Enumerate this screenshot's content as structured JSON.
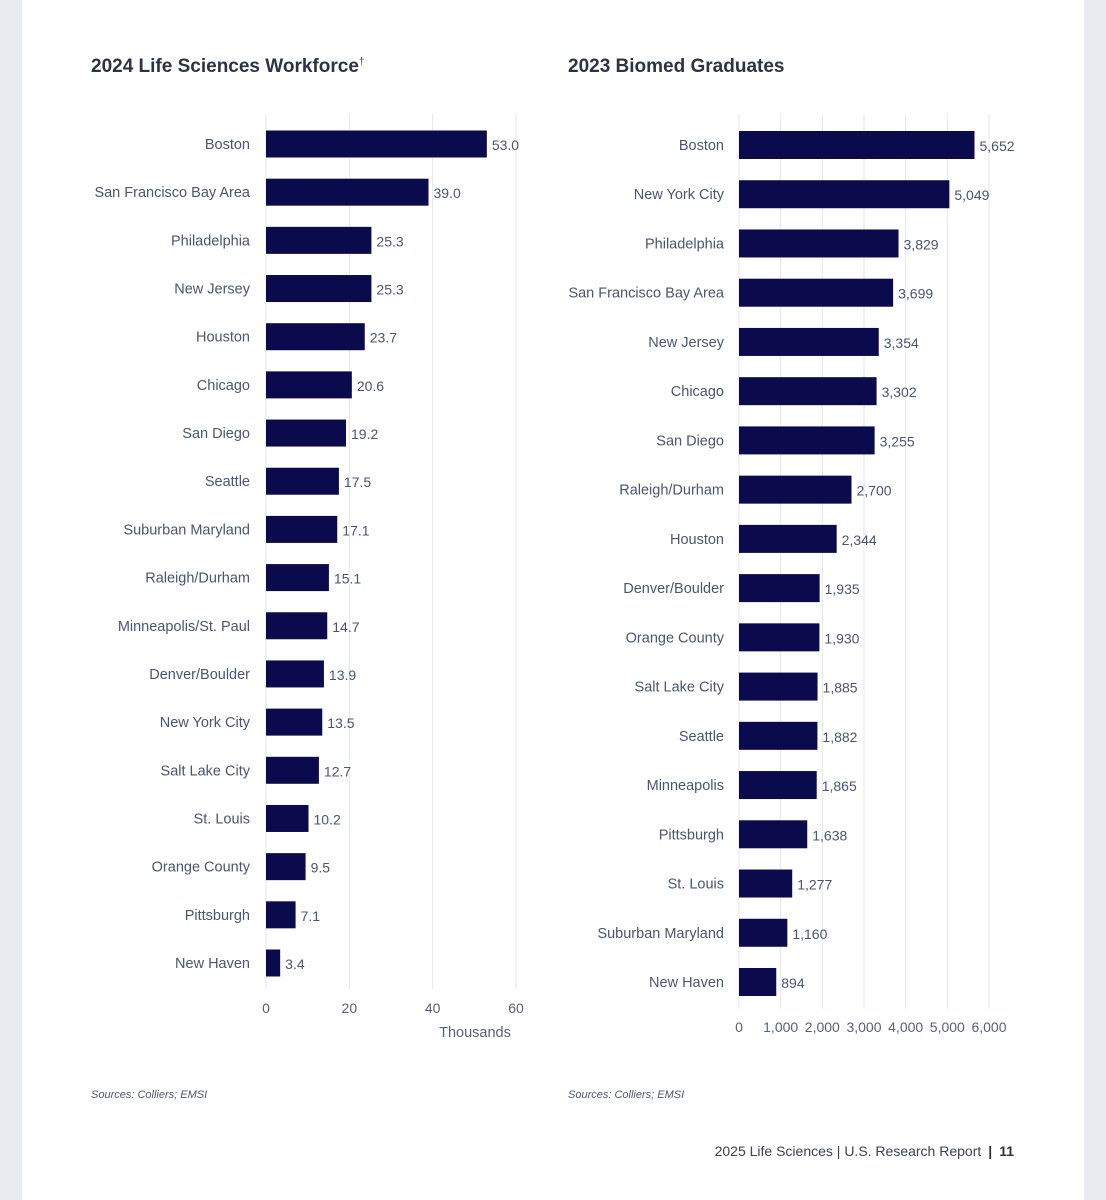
{
  "colors": {
    "bar": "#0a0a4d",
    "grid": "#e4e6ec",
    "axis_text": "#56607a",
    "category_text": "#4a5573",
    "value_text": "#4a5573"
  },
  "chart_data": [
    {
      "type": "bar",
      "orientation": "horizontal",
      "title": "2024 Life Sciences Workforce",
      "title_mark": "†",
      "categories": [
        "Boston",
        "San Francisco Bay Area",
        "Philadelphia",
        "New Jersey",
        "Houston",
        "Chicago",
        "San Diego",
        "Seattle",
        "Suburban Maryland",
        "Raleigh/Durham",
        "Minneapolis/St. Paul",
        "Denver/Boulder",
        "New York City",
        "Salt Lake City",
        "St. Louis",
        "Orange County",
        "Pittsburgh",
        "New Haven"
      ],
      "values": [
        53.0,
        39.0,
        25.3,
        25.3,
        23.7,
        20.6,
        19.2,
        17.5,
        17.1,
        15.1,
        14.7,
        13.9,
        13.5,
        12.7,
        10.2,
        9.5,
        7.1,
        3.4
      ],
      "value_labels": [
        "53.0",
        "39.0",
        "25.3",
        "25.3",
        "23.7",
        "20.6",
        "19.2",
        "17.5",
        "17.1",
        "15.1",
        "14.7",
        "13.9",
        "13.5",
        "12.7",
        "10.2",
        "9.5",
        "7.1",
        "3.4"
      ],
      "xlim": [
        0,
        60
      ],
      "xticks": [
        0,
        20,
        40,
        60
      ],
      "xtick_labels": [
        "0",
        "20",
        "40",
        "60"
      ],
      "xlabel": "Thousands",
      "ylabel": "",
      "grid": true,
      "source": "Sources: Colliers; EMSI"
    },
    {
      "type": "bar",
      "orientation": "horizontal",
      "title": "2023 Biomed Graduates",
      "categories": [
        "Boston",
        "New York City",
        "Philadelphia",
        "San Francisco Bay Area",
        "New Jersey",
        "Chicago",
        "San Diego",
        "Raleigh/Durham",
        "Houston",
        "Denver/Boulder",
        "Orange County",
        "Salt Lake City",
        "Seattle",
        "Minneapolis",
        "Pittsburgh",
        "St. Louis",
        "Suburban Maryland",
        "New Haven"
      ],
      "values": [
        5652,
        5049,
        3829,
        3699,
        3354,
        3302,
        3255,
        2700,
        2344,
        1935,
        1930,
        1885,
        1882,
        1865,
        1638,
        1277,
        1160,
        894
      ],
      "value_labels": [
        "5,652",
        "5,049",
        "3,829",
        "3,699",
        "3,354",
        "3,302",
        "3,255",
        "2,700",
        "2,344",
        "1,935",
        "1,930",
        "1,885",
        "1,882",
        "1,865",
        "1,638",
        "1,277",
        "1,160",
        "894"
      ],
      "xlim": [
        0,
        6000
      ],
      "xticks": [
        0,
        1000,
        2000,
        3000,
        4000,
        5000,
        6000
      ],
      "xtick_labels": [
        "0",
        "1,000",
        "2,000",
        "3,000",
        "4,000",
        "5,000",
        "6,000"
      ],
      "xlabel": "",
      "ylabel": "",
      "grid": true,
      "source": "Sources: Colliers; EMSI"
    }
  ],
  "footer": {
    "report": "2025 Life Sciences | U.S. Research Report",
    "separator": "|",
    "page_number": "11"
  }
}
